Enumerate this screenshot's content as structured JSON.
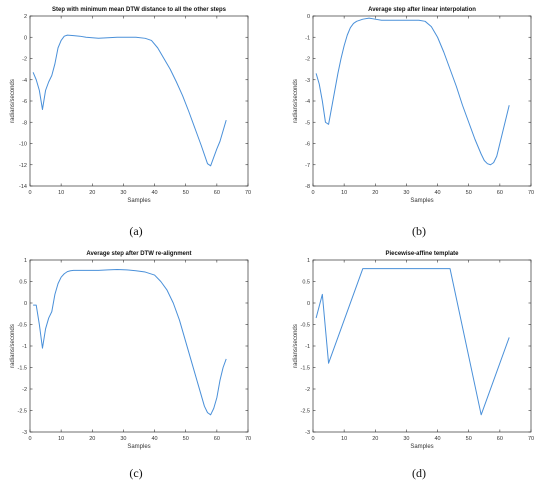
{
  "chart_data": [
    {
      "type": "line",
      "title": "Step with minimum mean DTW distance to all the other steps",
      "xlabel": "Samples",
      "ylabel": "radians/seconds",
      "xlim": [
        0,
        70
      ],
      "ylim": [
        -14,
        2
      ],
      "xticks": [
        0,
        10,
        20,
        30,
        40,
        50,
        60,
        70
      ],
      "yticks": [
        -14,
        -12,
        -10,
        -8,
        -6,
        -4,
        -2,
        0,
        2
      ],
      "grid": false,
      "caption": "(a)",
      "series": [
        {
          "color": "#4a90d9",
          "x": [
            1,
            2,
            3,
            4,
            5,
            6,
            7,
            8,
            9,
            10,
            11,
            12,
            14,
            16,
            18,
            20,
            22,
            25,
            28,
            31,
            34,
            37,
            39,
            41,
            43,
            45,
            47,
            49,
            51,
            53,
            55,
            57,
            58,
            59,
            60,
            61,
            62,
            63
          ],
          "y": [
            -3.3,
            -4.0,
            -5.0,
            -6.8,
            -5.0,
            -4.2,
            -3.6,
            -2.5,
            -1.0,
            -0.3,
            0.1,
            0.2,
            0.15,
            0.1,
            0.0,
            -0.05,
            -0.1,
            -0.05,
            0.0,
            0.0,
            0.0,
            -0.1,
            -0.3,
            -1.0,
            -2.0,
            -3.0,
            -4.2,
            -5.5,
            -7.0,
            -8.6,
            -10.2,
            -11.9,
            -12.1,
            -11.3,
            -10.5,
            -9.8,
            -8.8,
            -7.8
          ]
        }
      ]
    },
    {
      "type": "line",
      "title": "Average step after linear interpolation",
      "xlabel": "Samples",
      "ylabel": "radians/seconds",
      "xlim": [
        0,
        70
      ],
      "ylim": [
        -8,
        0
      ],
      "xticks": [
        0,
        10,
        20,
        30,
        40,
        50,
        60,
        70
      ],
      "yticks": [
        -8,
        -7,
        -6,
        -5,
        -4,
        -3,
        -2,
        -1,
        0
      ],
      "grid": false,
      "caption": "(b)",
      "series": [
        {
          "color": "#4a90d9",
          "x": [
            1,
            2,
            3,
            4,
            5,
            6,
            7,
            8,
            9,
            10,
            11,
            12,
            13,
            14,
            16,
            18,
            20,
            22,
            25,
            28,
            31,
            34,
            36,
            38,
            40,
            42,
            44,
            46,
            48,
            50,
            52,
            54,
            55,
            56,
            57,
            58,
            59,
            60,
            61,
            62,
            63
          ],
          "y": [
            -2.7,
            -3.2,
            -4.0,
            -5.0,
            -5.1,
            -4.3,
            -3.5,
            -2.7,
            -2.0,
            -1.4,
            -0.9,
            -0.55,
            -0.35,
            -0.25,
            -0.15,
            -0.1,
            -0.15,
            -0.2,
            -0.2,
            -0.2,
            -0.2,
            -0.2,
            -0.25,
            -0.5,
            -1.0,
            -1.7,
            -2.5,
            -3.3,
            -4.2,
            -5.0,
            -5.8,
            -6.5,
            -6.8,
            -6.95,
            -7.0,
            -6.9,
            -6.6,
            -6.0,
            -5.4,
            -4.8,
            -4.2
          ]
        }
      ]
    },
    {
      "type": "line",
      "title": "Average step after DTW re-alignment",
      "xlabel": "Samples",
      "ylabel": "radians/seconds",
      "xlim": [
        0,
        70
      ],
      "ylim": [
        -3,
        1
      ],
      "xticks": [
        0,
        10,
        20,
        30,
        40,
        50,
        60,
        70
      ],
      "yticks": [
        -3,
        -2.5,
        -2,
        -1.5,
        -1,
        -0.5,
        0,
        0.5,
        1
      ],
      "grid": false,
      "caption": "(c)",
      "series": [
        {
          "color": "#4a90d9",
          "x": [
            1,
            2,
            3,
            4,
            5,
            6,
            7,
            8,
            9,
            10,
            11,
            12,
            13,
            14,
            16,
            18,
            20,
            22,
            25,
            28,
            31,
            34,
            37,
            40,
            42,
            44,
            46,
            48,
            50,
            52,
            54,
            56,
            57,
            58,
            59,
            60,
            61,
            62,
            63
          ],
          "y": [
            -0.05,
            -0.05,
            -0.5,
            -1.05,
            -0.6,
            -0.35,
            -0.2,
            0.2,
            0.45,
            0.6,
            0.68,
            0.73,
            0.75,
            0.76,
            0.76,
            0.76,
            0.76,
            0.76,
            0.77,
            0.78,
            0.77,
            0.75,
            0.72,
            0.65,
            0.5,
            0.3,
            0.0,
            -0.4,
            -0.9,
            -1.4,
            -1.9,
            -2.4,
            -2.55,
            -2.6,
            -2.45,
            -2.2,
            -1.8,
            -1.5,
            -1.3
          ]
        }
      ]
    },
    {
      "type": "line",
      "title": "Piecewise-affine template",
      "xlabel": "Samples",
      "ylabel": "radians/seconds",
      "xlim": [
        0,
        70
      ],
      "ylim": [
        -3,
        1
      ],
      "xticks": [
        0,
        10,
        20,
        30,
        40,
        50,
        60,
        70
      ],
      "yticks": [
        -3,
        -2.5,
        -2,
        -1.5,
        -1,
        -0.5,
        0,
        0.5,
        1
      ],
      "grid": false,
      "caption": "(d)",
      "series": [
        {
          "color": "#4a90d9",
          "x": [
            1,
            3,
            5,
            16,
            44,
            54,
            63
          ],
          "y": [
            -0.35,
            0.2,
            -1.4,
            0.8,
            0.8,
            -2.6,
            -0.8
          ]
        }
      ]
    }
  ]
}
